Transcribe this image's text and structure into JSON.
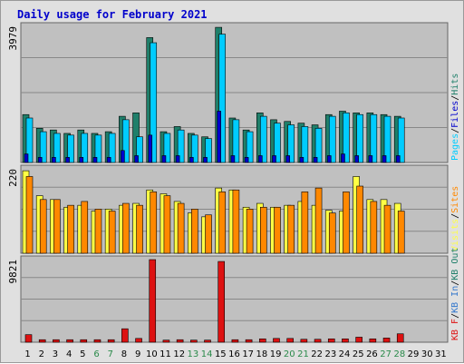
{
  "title": "Daily usage for February 2021",
  "colors": {
    "hits": "#1f7f6a",
    "files": "#00ccff",
    "pages": "#0000cc",
    "visits": "#ffff44",
    "sites": "#ff8800",
    "kbin": "#3377cc",
    "kbout": "#1f7f6a",
    "kbf": "#dd1111",
    "weekday": "#000000",
    "weekend": "#2a8a4a",
    "panel": "#c0c0c0",
    "grid": "#888888"
  },
  "chart_data": {
    "type": "bar",
    "title": "Daily usage for February 2021",
    "days": [
      "1",
      "2",
      "3",
      "4",
      "5",
      "6",
      "7",
      "8",
      "9",
      "10",
      "11",
      "12",
      "13",
      "14",
      "15",
      "16",
      "17",
      "18",
      "19",
      "20",
      "21",
      "22",
      "23",
      "24",
      "25",
      "26",
      "27",
      "28",
      "29",
      "30",
      "31"
    ],
    "weekend_days": [
      "6",
      "7",
      "13",
      "14",
      "20",
      "21",
      "27",
      "28"
    ],
    "panels": [
      {
        "name": "hits_files_pages",
        "ymax_label": "3979",
        "ymax": 3979,
        "legend": [
          "Pages",
          "/",
          "Files",
          "/",
          "Hits"
        ],
        "series": [
          {
            "name": "Hits",
            "values": [
              1400,
              1000,
              950,
              850,
              950,
              850,
              900,
              1350,
              1450,
              3650,
              900,
              1050,
              850,
              750,
              3950,
              1300,
              950,
              1450,
              1250,
              1200,
              1150,
              1100,
              1400,
              1500,
              1450,
              1450,
              1400,
              1350,
              0,
              0,
              0
            ]
          },
          {
            "name": "Files",
            "values": [
              1300,
              900,
              850,
              800,
              850,
              800,
              850,
              1250,
              750,
              3500,
              850,
              950,
              800,
              700,
              3750,
              1250,
              900,
              1350,
              1150,
              1100,
              1050,
              1000,
              1350,
              1450,
              1400,
              1400,
              1350,
              1300,
              0,
              0,
              0
            ]
          },
          {
            "name": "Pages",
            "values": [
              250,
              150,
              150,
              150,
              150,
              150,
              150,
              350,
              200,
              800,
              200,
              200,
              150,
              150,
              1500,
              200,
              150,
              200,
              200,
              200,
              150,
              150,
              200,
              250,
              200,
              200,
              200,
              200,
              0,
              0,
              0
            ]
          }
        ]
      },
      {
        "name": "visits_sites",
        "ymax_label": "220",
        "ymax": 220,
        "legend": [
          "Visits",
          "/",
          "Sites"
        ],
        "series": [
          {
            "name": "Visits",
            "values": [
              215,
              150,
              140,
              120,
              125,
              110,
              115,
              125,
              130,
              165,
              155,
              135,
              105,
              95,
              170,
              165,
              120,
              130,
              120,
              125,
              135,
              125,
              112,
              110,
              200,
              140,
              140,
              130,
              0,
              0,
              0
            ]
          },
          {
            "name": "Sites",
            "values": [
              200,
              140,
              140,
              125,
              135,
              115,
              110,
              130,
              125,
              160,
              150,
              130,
              115,
              100,
              160,
              165,
              115,
              120,
              120,
              125,
              160,
              170,
              105,
              160,
              175,
              135,
              125,
              110,
              0,
              0,
              0
            ]
          }
        ]
      },
      {
        "name": "kb",
        "ymax_label": "9821",
        "ymax": 9821,
        "legend": [
          "KB F",
          "/",
          "KB In",
          "/",
          "KB Out"
        ],
        "series": [
          {
            "name": "KB F",
            "values": [
              900,
              300,
              300,
              300,
              300,
              300,
              300,
              1600,
              450,
              9821,
              250,
              300,
              250,
              250,
              9600,
              300,
              300,
              400,
              450,
              450,
              350,
              350,
              400,
              400,
              600,
              400,
              500,
              1000,
              0,
              0,
              0
            ]
          }
        ]
      }
    ]
  }
}
